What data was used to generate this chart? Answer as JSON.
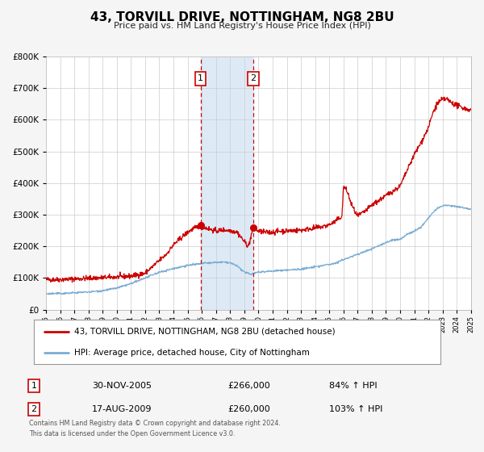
{
  "title": "43, TORVILL DRIVE, NOTTINGHAM, NG8 2BU",
  "subtitle": "Price paid vs. HM Land Registry's House Price Index (HPI)",
  "red_label": "43, TORVILL DRIVE, NOTTINGHAM, NG8 2BU (detached house)",
  "blue_label": "HPI: Average price, detached house, City of Nottingham",
  "marker1_date": "30-NOV-2005",
  "marker1_price": 266000,
  "marker1_pct": "84% ↑ HPI",
  "marker2_date": "17-AUG-2009",
  "marker2_price": 260000,
  "marker2_pct": "103% ↑ HPI",
  "footer1": "Contains HM Land Registry data © Crown copyright and database right 2024.",
  "footer2": "This data is licensed under the Open Government Licence v3.0.",
  "vline1_x": 2005.92,
  "vline2_x": 2009.63,
  "ylim_min": 0,
  "ylim_max": 800000,
  "xlim_min": 1995,
  "xlim_max": 2025,
  "background_color": "#f5f5f5",
  "plot_bg_color": "#ffffff",
  "red_color": "#cc0000",
  "blue_color": "#7aadd4",
  "shade_color": "#ddeaf6"
}
